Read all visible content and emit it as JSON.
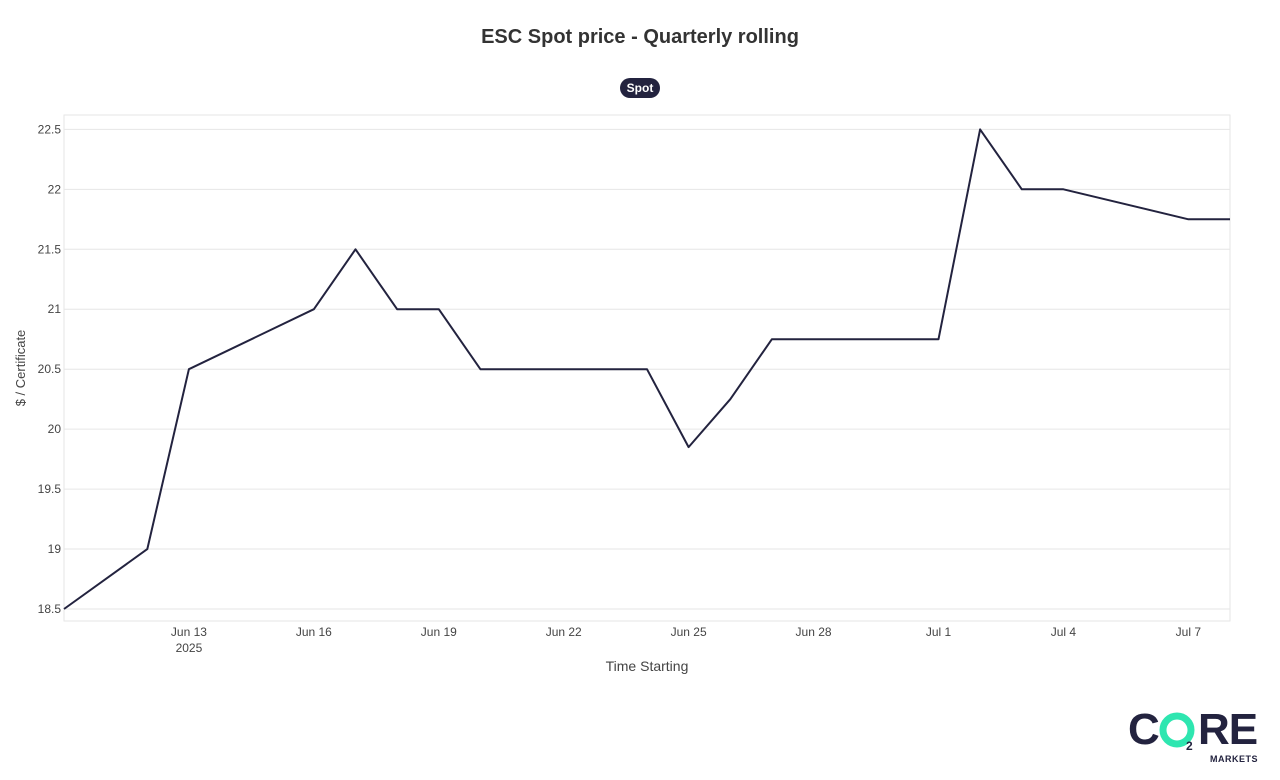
{
  "chart_data": {
    "type": "line",
    "title": "ESC Spot price  -  Quarterly rolling",
    "xlabel": "Time Starting",
    "ylabel": "$ / Certificate",
    "ylim": [
      18.4,
      22.62
    ],
    "xlim": [
      "2025-06-10",
      "2025-07-08"
    ],
    "y_ticks": [
      18.5,
      19,
      19.5,
      20,
      20.5,
      21,
      21.5,
      22,
      22.5
    ],
    "y_tick_labels": [
      "18.5",
      "19",
      "19.5",
      "20",
      "20.5",
      "21",
      "21.5",
      "22",
      "22.5"
    ],
    "x_ticks": [
      {
        "date": "2025-06-13",
        "label": "Jun 13",
        "sublabel": "2025"
      },
      {
        "date": "2025-06-16",
        "label": "Jun 16",
        "sublabel": ""
      },
      {
        "date": "2025-06-19",
        "label": "Jun 19",
        "sublabel": ""
      },
      {
        "date": "2025-06-22",
        "label": "Jun 22",
        "sublabel": ""
      },
      {
        "date": "2025-06-25",
        "label": "Jun 25",
        "sublabel": ""
      },
      {
        "date": "2025-06-28",
        "label": "Jun 28",
        "sublabel": ""
      },
      {
        "date": "2025-07-01",
        "label": "Jul 1",
        "sublabel": ""
      },
      {
        "date": "2025-07-04",
        "label": "Jul 4",
        "sublabel": ""
      },
      {
        "date": "2025-07-07",
        "label": "Jul 7",
        "sublabel": ""
      }
    ],
    "grid": true,
    "legend_position": "top-center",
    "series": [
      {
        "name": "Spot",
        "color": "#23233f",
        "x": [
          "2025-06-10",
          "2025-06-12",
          "2025-06-13",
          "2025-06-16",
          "2025-06-17",
          "2025-06-18",
          "2025-06-19",
          "2025-06-20",
          "2025-06-24",
          "2025-06-25",
          "2025-06-26",
          "2025-06-27",
          "2025-07-01",
          "2025-07-02",
          "2025-07-03",
          "2025-07-04",
          "2025-07-07",
          "2025-07-08"
        ],
        "values": [
          18.5,
          19.0,
          20.5,
          21.0,
          21.5,
          21.0,
          21.0,
          20.5,
          20.5,
          19.85,
          20.25,
          20.75,
          20.75,
          22.5,
          22.0,
          22.0,
          21.75,
          21.75
        ]
      }
    ]
  },
  "logo": {
    "text_left": "C",
    "text_right": "RE",
    "subscript": "2",
    "tagline": "MARKETS",
    "accent_color": "#2ee6b0",
    "brand_color": "#23233f"
  }
}
